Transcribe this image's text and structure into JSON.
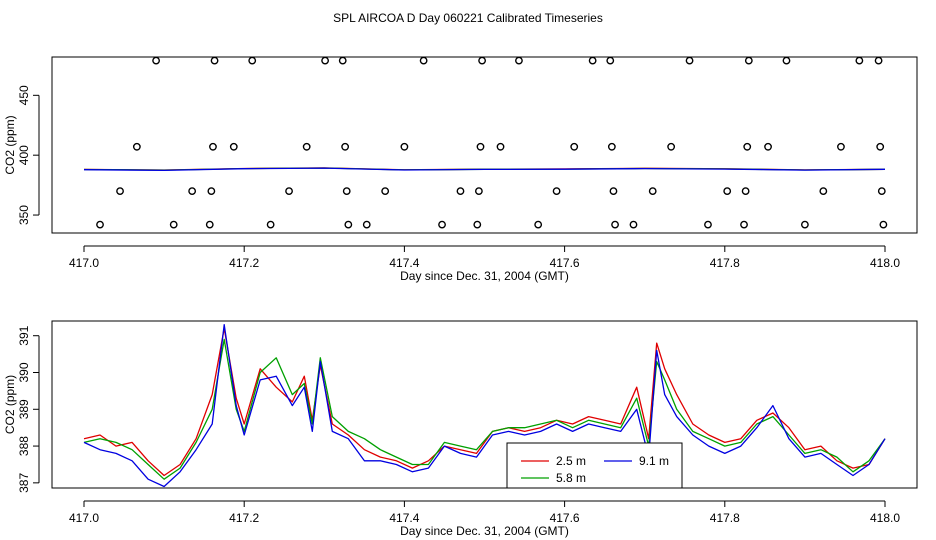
{
  "figure": {
    "title": "SPL AIRCOA D  Day 060221  Calibrated Timeseries"
  },
  "colors": {
    "s25": "#e00000",
    "s58": "#00a000",
    "s91": "#0000e0"
  },
  "chart_data": [
    {
      "type": "scatter",
      "title": "",
      "xlabel": "Day since Dec. 31, 2004 (GMT)",
      "ylabel": "CO2 (ppm)",
      "xlim": [
        417.0,
        418.0
      ],
      "ylim": [
        335,
        482
      ],
      "xticks": [
        "417.0",
        "417.2",
        "417.4",
        "417.6",
        "417.8",
        "418.0"
      ],
      "xtick_values": [
        417.0,
        417.2,
        417.4,
        417.6,
        417.8,
        418.0
      ],
      "yticks": [
        "350",
        "400",
        "450"
      ],
      "ytick_values": [
        350,
        400,
        450
      ],
      "points": [
        {
          "x": 417.02,
          "y": 342
        },
        {
          "x": 417.045,
          "y": 370
        },
        {
          "x": 417.066,
          "y": 407
        },
        {
          "x": 417.09,
          "y": 479
        },
        {
          "x": 417.112,
          "y": 342
        },
        {
          "x": 417.135,
          "y": 370
        },
        {
          "x": 417.157,
          "y": 342
        },
        {
          "x": 417.159,
          "y": 370
        },
        {
          "x": 417.161,
          "y": 407
        },
        {
          "x": 417.163,
          "y": 479
        },
        {
          "x": 417.187,
          "y": 407
        },
        {
          "x": 417.21,
          "y": 479
        },
        {
          "x": 417.233,
          "y": 342
        },
        {
          "x": 417.256,
          "y": 370
        },
        {
          "x": 417.278,
          "y": 407
        },
        {
          "x": 417.301,
          "y": 479
        },
        {
          "x": 417.323,
          "y": 479
        },
        {
          "x": 417.326,
          "y": 407
        },
        {
          "x": 417.328,
          "y": 370
        },
        {
          "x": 417.33,
          "y": 342
        },
        {
          "x": 417.353,
          "y": 342
        },
        {
          "x": 417.376,
          "y": 370
        },
        {
          "x": 417.4,
          "y": 407
        },
        {
          "x": 417.424,
          "y": 479
        },
        {
          "x": 417.447,
          "y": 342
        },
        {
          "x": 417.47,
          "y": 370
        },
        {
          "x": 417.491,
          "y": 342
        },
        {
          "x": 417.493,
          "y": 370
        },
        {
          "x": 417.495,
          "y": 407
        },
        {
          "x": 417.497,
          "y": 479
        },
        {
          "x": 417.52,
          "y": 407
        },
        {
          "x": 417.543,
          "y": 479
        },
        {
          "x": 417.567,
          "y": 342
        },
        {
          "x": 417.59,
          "y": 370
        },
        {
          "x": 417.612,
          "y": 407
        },
        {
          "x": 417.635,
          "y": 479
        },
        {
          "x": 417.657,
          "y": 479
        },
        {
          "x": 417.659,
          "y": 407
        },
        {
          "x": 417.661,
          "y": 370
        },
        {
          "x": 417.663,
          "y": 342
        },
        {
          "x": 417.686,
          "y": 342
        },
        {
          "x": 417.71,
          "y": 370
        },
        {
          "x": 417.733,
          "y": 407
        },
        {
          "x": 417.756,
          "y": 479
        },
        {
          "x": 417.779,
          "y": 342
        },
        {
          "x": 417.803,
          "y": 370
        },
        {
          "x": 417.824,
          "y": 342
        },
        {
          "x": 417.826,
          "y": 370
        },
        {
          "x": 417.828,
          "y": 407
        },
        {
          "x": 417.83,
          "y": 479
        },
        {
          "x": 417.854,
          "y": 407
        },
        {
          "x": 417.877,
          "y": 479
        },
        {
          "x": 417.9,
          "y": 342
        },
        {
          "x": 417.923,
          "y": 370
        },
        {
          "x": 417.945,
          "y": 407
        },
        {
          "x": 417.968,
          "y": 479
        },
        {
          "x": 417.992,
          "y": 479
        },
        {
          "x": 417.994,
          "y": 407
        },
        {
          "x": 417.996,
          "y": 370
        },
        {
          "x": 417.998,
          "y": 342
        }
      ],
      "series": [
        {
          "name": "2.5 m",
          "color": "#e00000",
          "x": [
            417.0,
            417.1,
            417.2,
            417.3,
            417.4,
            417.5,
            417.6,
            417.7,
            417.8,
            417.9,
            418.0
          ],
          "y": [
            388.1,
            387.6,
            388.9,
            389.4,
            387.8,
            388.3,
            388.5,
            389.0,
            388.6,
            387.7,
            388.2
          ]
        },
        {
          "name": "5.8 m",
          "color": "#00a000",
          "x": [
            417.0,
            417.1,
            417.2,
            417.3,
            417.4,
            417.5,
            417.6,
            417.7,
            417.8,
            417.9,
            418.0
          ],
          "y": [
            388.0,
            387.5,
            388.8,
            389.3,
            387.7,
            388.2,
            388.4,
            388.9,
            388.5,
            387.6,
            388.2
          ]
        },
        {
          "name": "9.1 m",
          "color": "#0000e0",
          "x": [
            417.0,
            417.1,
            417.2,
            417.3,
            417.4,
            417.5,
            417.6,
            417.7,
            417.8,
            417.9,
            418.0
          ],
          "y": [
            387.9,
            387.3,
            388.7,
            389.2,
            387.6,
            388.1,
            388.3,
            388.8,
            388.4,
            387.5,
            388.2
          ]
        }
      ]
    },
    {
      "type": "line",
      "title": "",
      "xlabel": "Day since Dec. 31, 2004 (GMT)",
      "ylabel": "CO2 (ppm)",
      "xlim": [
        417.0,
        418.0
      ],
      "ylim": [
        386.86,
        391.4
      ],
      "xticks": [
        "417.0",
        "417.2",
        "417.4",
        "417.6",
        "417.8",
        "418.0"
      ],
      "xtick_values": [
        417.0,
        417.2,
        417.4,
        417.6,
        417.8,
        418.0
      ],
      "yticks": [
        "387",
        "388",
        "389",
        "390",
        "391"
      ],
      "ytick_values": [
        387,
        388,
        389,
        390,
        391
      ],
      "legend": {
        "position": "bottom-center",
        "entries": [
          "2.5 m",
          "9.1 m",
          "5.8 m"
        ]
      },
      "series": [
        {
          "name": "2.5 m",
          "color": "#e00000",
          "x": [
            417.0,
            417.02,
            417.04,
            417.06,
            417.08,
            417.1,
            417.12,
            417.14,
            417.16,
            417.175,
            417.19,
            417.2,
            417.22,
            417.24,
            417.26,
            417.275,
            417.285,
            417.295,
            417.31,
            417.33,
            417.35,
            417.37,
            417.39,
            417.41,
            417.43,
            417.45,
            417.47,
            417.49,
            417.51,
            417.53,
            417.55,
            417.57,
            417.59,
            417.61,
            417.63,
            417.65,
            417.67,
            417.69,
            417.705,
            417.715,
            417.725,
            417.74,
            417.76,
            417.78,
            417.8,
            417.82,
            417.84,
            417.86,
            417.88,
            417.9,
            417.92,
            417.94,
            417.96,
            417.98,
            418.0
          ],
          "y": [
            388.2,
            388.3,
            388.0,
            388.1,
            387.6,
            387.2,
            387.5,
            388.2,
            389.4,
            391.2,
            389.3,
            388.6,
            390.1,
            389.6,
            389.2,
            389.9,
            388.7,
            390.2,
            388.6,
            388.3,
            387.9,
            387.7,
            387.6,
            387.4,
            387.6,
            388.0,
            387.9,
            387.8,
            388.4,
            388.5,
            388.4,
            388.5,
            388.7,
            388.6,
            388.8,
            388.7,
            388.6,
            389.6,
            388.2,
            390.8,
            390.1,
            389.4,
            388.6,
            388.3,
            388.1,
            388.2,
            388.7,
            388.9,
            388.5,
            387.9,
            388.0,
            387.6,
            387.4,
            387.5,
            388.2
          ]
        },
        {
          "name": "5.8 m",
          "color": "#00a000",
          "x": [
            417.0,
            417.02,
            417.04,
            417.06,
            417.08,
            417.1,
            417.12,
            417.14,
            417.16,
            417.175,
            417.19,
            417.2,
            417.22,
            417.24,
            417.26,
            417.275,
            417.285,
            417.295,
            417.31,
            417.33,
            417.35,
            417.37,
            417.39,
            417.41,
            417.43,
            417.45,
            417.47,
            417.49,
            417.51,
            417.53,
            417.55,
            417.57,
            417.59,
            417.61,
            417.63,
            417.65,
            417.67,
            417.69,
            417.705,
            417.715,
            417.725,
            417.74,
            417.76,
            417.78,
            417.8,
            417.82,
            417.84,
            417.86,
            417.88,
            417.9,
            417.92,
            417.94,
            417.96,
            417.98,
            418.0
          ],
          "y": [
            388.1,
            388.2,
            388.1,
            387.9,
            387.5,
            387.1,
            387.4,
            388.1,
            389.0,
            390.9,
            389.0,
            388.4,
            390.0,
            390.4,
            389.4,
            389.7,
            388.6,
            390.4,
            388.8,
            388.4,
            388.2,
            387.9,
            387.7,
            387.5,
            387.5,
            388.1,
            388.0,
            387.9,
            388.4,
            388.5,
            388.5,
            388.6,
            388.7,
            388.5,
            388.7,
            388.6,
            388.5,
            389.3,
            388.0,
            390.3,
            389.8,
            389.0,
            388.4,
            388.2,
            388.0,
            388.1,
            388.6,
            388.8,
            388.3,
            387.8,
            387.9,
            387.7,
            387.3,
            387.6,
            388.2
          ]
        },
        {
          "name": "9.1 m",
          "color": "#0000e0",
          "x": [
            417.0,
            417.02,
            417.04,
            417.06,
            417.08,
            417.1,
            417.12,
            417.14,
            417.16,
            417.175,
            417.19,
            417.2,
            417.22,
            417.24,
            417.26,
            417.275,
            417.285,
            417.295,
            417.31,
            417.33,
            417.35,
            417.37,
            417.39,
            417.41,
            417.43,
            417.45,
            417.47,
            417.49,
            417.51,
            417.53,
            417.55,
            417.57,
            417.59,
            417.61,
            417.63,
            417.65,
            417.67,
            417.69,
            417.705,
            417.715,
            417.725,
            417.74,
            417.76,
            417.78,
            417.8,
            417.82,
            417.84,
            417.86,
            417.88,
            417.9,
            417.92,
            417.94,
            417.96,
            417.98,
            418.0
          ],
          "y": [
            388.1,
            387.9,
            387.8,
            387.6,
            387.1,
            386.9,
            387.3,
            387.9,
            388.6,
            391.3,
            389.1,
            388.3,
            389.8,
            389.9,
            389.1,
            389.6,
            388.4,
            390.3,
            388.4,
            388.2,
            387.6,
            387.6,
            387.5,
            387.3,
            387.4,
            388.0,
            387.8,
            387.7,
            388.3,
            388.4,
            388.3,
            388.4,
            388.6,
            388.4,
            388.6,
            388.5,
            388.4,
            389.0,
            387.7,
            390.6,
            389.4,
            388.8,
            388.3,
            388.0,
            387.8,
            388.0,
            388.5,
            389.1,
            388.2,
            387.7,
            387.8,
            387.5,
            387.2,
            387.5,
            388.2
          ]
        }
      ]
    }
  ]
}
